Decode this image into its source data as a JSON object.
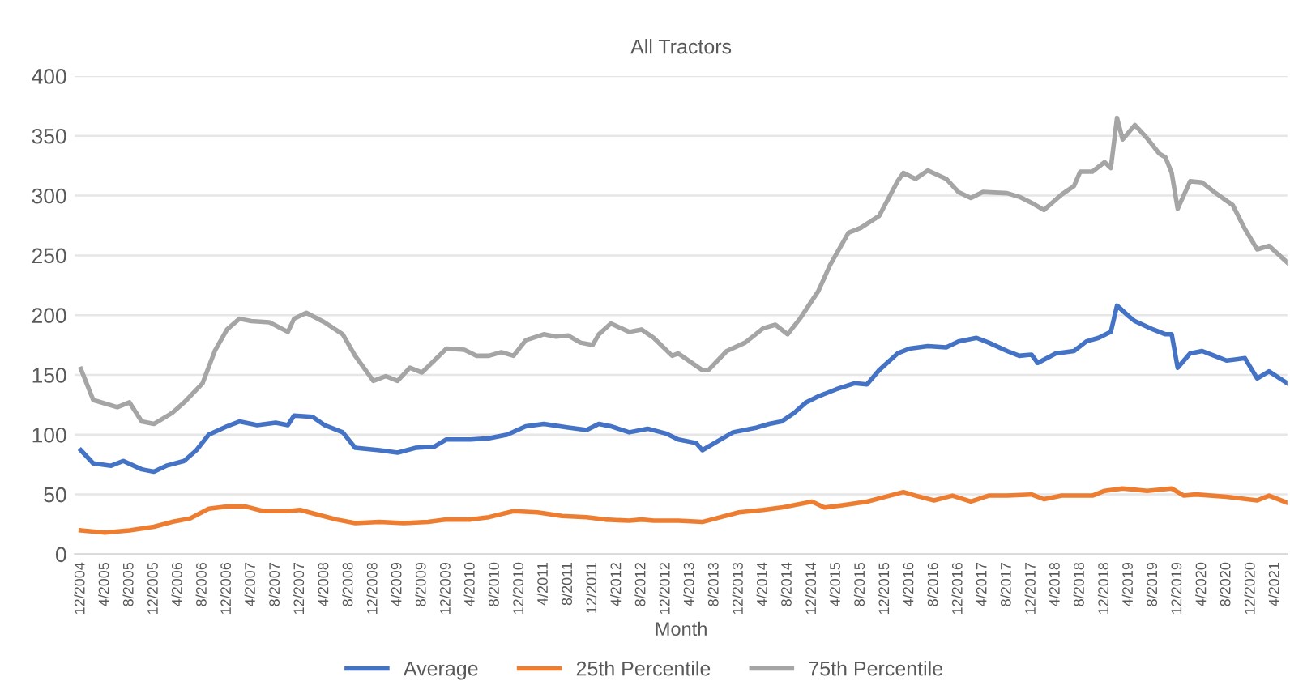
{
  "chart_data": {
    "type": "line",
    "title": "All Tractors",
    "xlabel": "Month",
    "xlim": [
      "2004-11",
      "2021-06"
    ],
    "ylim": [
      0,
      400
    ],
    "yticks": [
      0,
      50,
      100,
      150,
      200,
      250,
      300,
      350,
      400
    ],
    "xticks": [
      {
        "value": "2004-12",
        "label": "12/2004"
      },
      {
        "value": "2005-04",
        "label": "4/2005"
      },
      {
        "value": "2005-08",
        "label": "8/2005"
      },
      {
        "value": "2005-12",
        "label": "12/2005"
      },
      {
        "value": "2006-04",
        "label": "4/2006"
      },
      {
        "value": "2006-08",
        "label": "8/2006"
      },
      {
        "value": "2006-12",
        "label": "12/2006"
      },
      {
        "value": "2007-04",
        "label": "4/2007"
      },
      {
        "value": "2007-08",
        "label": "8/2007"
      },
      {
        "value": "2007-12",
        "label": "12/2007"
      },
      {
        "value": "2008-04",
        "label": "4/2008"
      },
      {
        "value": "2008-08",
        "label": "8/2008"
      },
      {
        "value": "2008-12",
        "label": "12/2008"
      },
      {
        "value": "2009-04",
        "label": "4/2009"
      },
      {
        "value": "2009-08",
        "label": "8/2009"
      },
      {
        "value": "2009-12",
        "label": "12/2009"
      },
      {
        "value": "2010-04",
        "label": "4/2010"
      },
      {
        "value": "2010-08",
        "label": "8/2010"
      },
      {
        "value": "2010-12",
        "label": "12/2010"
      },
      {
        "value": "2011-04",
        "label": "4/2011"
      },
      {
        "value": "2011-08",
        "label": "8/2011"
      },
      {
        "value": "2011-12",
        "label": "12/2011"
      },
      {
        "value": "2012-04",
        "label": "4/2012"
      },
      {
        "value": "2012-08",
        "label": "8/2012"
      },
      {
        "value": "2012-12",
        "label": "12/2012"
      },
      {
        "value": "2013-04",
        "label": "4/2013"
      },
      {
        "value": "2013-08",
        "label": "8/2013"
      },
      {
        "value": "2013-12",
        "label": "12/2013"
      },
      {
        "value": "2014-04",
        "label": "4/2014"
      },
      {
        "value": "2014-08",
        "label": "8/2014"
      },
      {
        "value": "2014-12",
        "label": "12/2014"
      },
      {
        "value": "2015-04",
        "label": "4/2015"
      },
      {
        "value": "2015-08",
        "label": "8/2015"
      },
      {
        "value": "2015-12",
        "label": "12/2015"
      },
      {
        "value": "2016-04",
        "label": "4/2016"
      },
      {
        "value": "2016-08",
        "label": "8/2016"
      },
      {
        "value": "2016-12",
        "label": "12/2016"
      },
      {
        "value": "2017-04",
        "label": "4/2017"
      },
      {
        "value": "2017-08",
        "label": "8/2017"
      },
      {
        "value": "2017-12",
        "label": "12/2017"
      },
      {
        "value": "2018-04",
        "label": "4/2018"
      },
      {
        "value": "2018-08",
        "label": "8/2018"
      },
      {
        "value": "2018-12",
        "label": "12/2018"
      },
      {
        "value": "2019-04",
        "label": "4/2019"
      },
      {
        "value": "2019-08",
        "label": "8/2019"
      },
      {
        "value": "2019-12",
        "label": "12/2019"
      },
      {
        "value": "2020-04",
        "label": "4/2020"
      },
      {
        "value": "2020-08",
        "label": "8/2020"
      },
      {
        "value": "2020-12",
        "label": "12/2020"
      },
      {
        "value": "2021-04",
        "label": "4/2021"
      }
    ],
    "grid": "y",
    "legend": "bottom",
    "marker": "none",
    "line_style": "solid",
    "series": [
      {
        "name": "Average",
        "color": "#4472c4",
        "x": [
          "2004-12",
          "2005-02",
          "2005-05",
          "2005-07",
          "2005-10",
          "2005-12",
          "2006-02",
          "2006-05",
          "2006-07",
          "2006-09",
          "2006-12",
          "2007-02",
          "2007-05",
          "2007-08",
          "2007-10",
          "2007-11",
          "2008-02",
          "2008-04",
          "2008-07",
          "2008-09",
          "2009-01",
          "2009-04",
          "2009-07",
          "2009-10",
          "2009-12",
          "2010-04",
          "2010-07",
          "2010-10",
          "2011-01",
          "2011-04",
          "2011-08",
          "2011-11",
          "2012-01",
          "2012-03",
          "2012-06",
          "2012-08",
          "2012-09",
          "2012-12",
          "2013-02",
          "2013-05",
          "2013-06",
          "2013-08",
          "2013-11",
          "2014-03",
          "2014-05",
          "2014-07",
          "2014-09",
          "2014-11",
          "2015-01",
          "2015-04",
          "2015-07",
          "2015-09",
          "2015-11",
          "2016-02",
          "2016-04",
          "2016-07",
          "2016-10",
          "2016-12",
          "2017-03",
          "2017-05",
          "2017-08",
          "2017-10",
          "2017-12",
          "2018-01",
          "2018-04",
          "2018-07",
          "2018-09",
          "2018-11",
          "2019-01",
          "2019-02",
          "2019-04",
          "2019-05",
          "2019-08",
          "2019-10",
          "2019-11",
          "2019-12",
          "2020-02",
          "2020-04",
          "2020-06",
          "2020-08",
          "2020-11",
          "2021-01",
          "2021-03",
          "2021-06"
        ],
        "values": [
          87,
          76,
          74,
          78,
          71,
          69,
          74,
          78,
          87,
          100,
          107,
          111,
          108,
          110,
          108,
          116,
          115,
          108,
          102,
          89,
          87,
          85,
          89,
          90,
          96,
          96,
          97,
          100,
          107,
          109,
          106,
          104,
          109,
          107,
          102,
          104,
          105,
          101,
          96,
          93,
          87,
          93,
          102,
          106,
          109,
          111,
          118,
          127,
          132,
          138,
          143,
          142,
          154,
          168,
          172,
          174,
          173,
          178,
          181,
          177,
          170,
          166,
          167,
          160,
          168,
          170,
          178,
          181,
          186,
          208,
          199,
          195,
          188,
          184,
          184,
          156,
          168,
          170,
          166,
          162,
          164,
          147,
          153,
          143
        ]
      },
      {
        "name": "25th Percentile",
        "color": "#ed7d31",
        "x": [
          "2004-12",
          "2005-04",
          "2005-08",
          "2005-12",
          "2006-03",
          "2006-06",
          "2006-09",
          "2006-12",
          "2007-03",
          "2007-06",
          "2007-10",
          "2007-12",
          "2008-03",
          "2008-06",
          "2008-09",
          "2009-01",
          "2009-05",
          "2009-09",
          "2009-12",
          "2010-04",
          "2010-07",
          "2010-11",
          "2011-03",
          "2011-07",
          "2011-11",
          "2012-02",
          "2012-06",
          "2012-08",
          "2012-10",
          "2013-02",
          "2013-06",
          "2013-09",
          "2013-12",
          "2014-04",
          "2014-07",
          "2014-12",
          "2015-02",
          "2015-05",
          "2015-09",
          "2015-12",
          "2016-03",
          "2016-05",
          "2016-08",
          "2016-11",
          "2017-02",
          "2017-05",
          "2017-08",
          "2017-12",
          "2018-02",
          "2018-05",
          "2018-10",
          "2018-12",
          "2019-03",
          "2019-07",
          "2019-11",
          "2020-01",
          "2020-03",
          "2020-08",
          "2021-01",
          "2021-03",
          "2021-06"
        ],
        "values": [
          20,
          18,
          20,
          23,
          27,
          30,
          38,
          40,
          40,
          36,
          36,
          37,
          33,
          29,
          26,
          27,
          26,
          27,
          29,
          29,
          31,
          36,
          35,
          32,
          31,
          29,
          28,
          29,
          28,
          28,
          27,
          31,
          35,
          37,
          39,
          44,
          39,
          41,
          44,
          48,
          52,
          49,
          45,
          49,
          44,
          49,
          49,
          50,
          46,
          49,
          49,
          53,
          55,
          53,
          55,
          49,
          50,
          48,
          45,
          49,
          43
        ]
      },
      {
        "name": "75th Percentile",
        "color": "#a5a5a5",
        "x": [
          "2004-12",
          "2005-02",
          "2005-06",
          "2005-08",
          "2005-10",
          "2005-12",
          "2006-03",
          "2006-05",
          "2006-08",
          "2006-10",
          "2006-12",
          "2007-02",
          "2007-04",
          "2007-07",
          "2007-10",
          "2007-11",
          "2008-01",
          "2008-04",
          "2008-07",
          "2008-09",
          "2008-12",
          "2009-02",
          "2009-04",
          "2009-06",
          "2009-08",
          "2009-12",
          "2010-03",
          "2010-05",
          "2010-07",
          "2010-09",
          "2010-11",
          "2011-01",
          "2011-04",
          "2011-06",
          "2011-08",
          "2011-10",
          "2011-12",
          "2012-01",
          "2012-03",
          "2012-06",
          "2012-08",
          "2012-10",
          "2013-01",
          "2013-02",
          "2013-06",
          "2013-07",
          "2013-10",
          "2014-01",
          "2014-04",
          "2014-06",
          "2014-08",
          "2014-10",
          "2015-01",
          "2015-03",
          "2015-06",
          "2015-08",
          "2015-11",
          "2016-02",
          "2016-03",
          "2016-05",
          "2016-07",
          "2016-10",
          "2016-12",
          "2017-02",
          "2017-04",
          "2017-08",
          "2017-10",
          "2017-12",
          "2018-02",
          "2018-05",
          "2018-07",
          "2018-08",
          "2018-10",
          "2018-12",
          "2019-01",
          "2019-02",
          "2019-03",
          "2019-05",
          "2019-07",
          "2019-09",
          "2019-10",
          "2019-11",
          "2019-12",
          "2020-02",
          "2020-04",
          "2020-06",
          "2020-09",
          "2020-11",
          "2021-01",
          "2021-03",
          "2021-06"
        ],
        "values": [
          155,
          129,
          123,
          127,
          111,
          109,
          118,
          127,
          143,
          170,
          188,
          197,
          195,
          194,
          186,
          197,
          202,
          194,
          184,
          166,
          145,
          149,
          145,
          156,
          152,
          172,
          171,
          166,
          166,
          169,
          166,
          179,
          184,
          182,
          183,
          177,
          175,
          184,
          193,
          186,
          188,
          181,
          166,
          168,
          154,
          154,
          170,
          177,
          189,
          192,
          184,
          197,
          220,
          242,
          269,
          273,
          283,
          312,
          319,
          314,
          321,
          314,
          303,
          298,
          303,
          302,
          299,
          294,
          288,
          301,
          308,
          320,
          320,
          328,
          323,
          365,
          347,
          359,
          348,
          335,
          332,
          319,
          289,
          312,
          311,
          303,
          292,
          272,
          255,
          258,
          244
        ]
      }
    ]
  }
}
